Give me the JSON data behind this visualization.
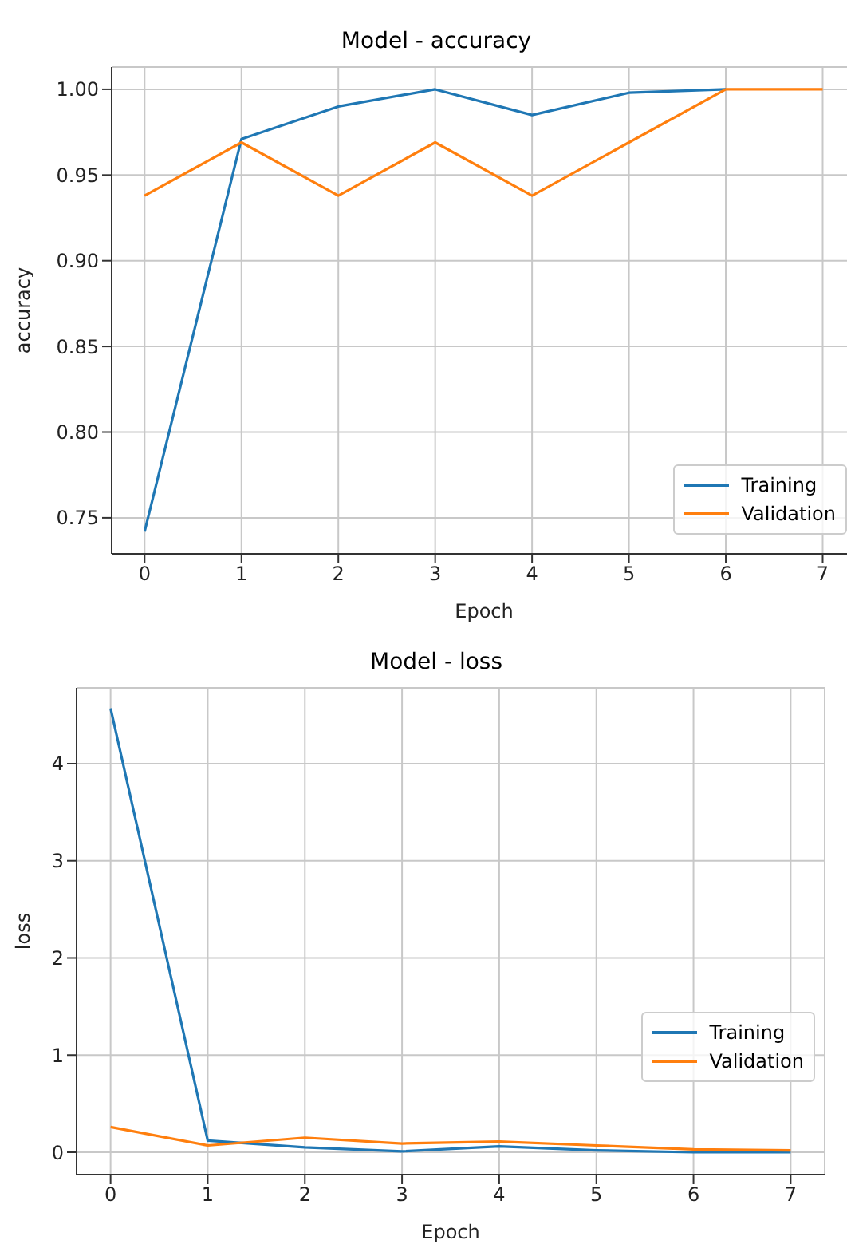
{
  "chart_data": [
    {
      "type": "line",
      "title": "Model - accuracy",
      "xlabel": "Epoch",
      "ylabel": "accuracy",
      "x": [
        0,
        1,
        2,
        3,
        4,
        5,
        6,
        7
      ],
      "xlim": [
        -0.34,
        7.35
      ],
      "xticks": [
        0,
        1,
        2,
        3,
        4,
        5,
        6,
        7
      ],
      "ylim": [
        0.729,
        1.013
      ],
      "yticks": [
        {
          "value": 0.75,
          "label": "0.75"
        },
        {
          "value": 0.8,
          "label": "0.80"
        },
        {
          "value": 0.85,
          "label": "0.85"
        },
        {
          "value": 0.9,
          "label": "0.90"
        },
        {
          "value": 0.95,
          "label": "0.95"
        },
        {
          "value": 1.0,
          "label": "1.00"
        }
      ],
      "grid": true,
      "legend": "bottom right",
      "marker": "none",
      "line_style": "solid",
      "series": [
        {
          "name": "Training",
          "color": "#1f77b4",
          "values": [
            0.742,
            0.971,
            0.99,
            1.0,
            0.985,
            0.998,
            1.0,
            null
          ]
        },
        {
          "name": "Validation",
          "color": "#ff7f0e",
          "values": [
            0.938,
            0.969,
            0.938,
            0.969,
            0.938,
            0.969,
            1.0,
            1.0
          ]
        }
      ]
    },
    {
      "type": "line",
      "title": "Model - loss",
      "xlabel": "Epoch",
      "ylabel": "loss",
      "x": [
        0,
        1,
        2,
        3,
        4,
        5,
        6,
        7
      ],
      "xlim": [
        -0.35,
        7.35
      ],
      "xticks": [
        0,
        1,
        2,
        3,
        4,
        5,
        6,
        7
      ],
      "ylim": [
        -0.23,
        4.78
      ],
      "yticks": [
        0,
        1,
        2,
        3,
        4
      ],
      "grid": true,
      "legend": "bottom right",
      "marker": "none",
      "line_style": "solid",
      "series": [
        {
          "name": "Training",
          "color": "#1f77b4",
          "values": [
            4.57,
            0.12,
            0.05,
            0.01,
            0.06,
            0.02,
            0.0,
            0.0
          ]
        },
        {
          "name": "Validation",
          "color": "#ff7f0e",
          "values": [
            0.26,
            0.07,
            0.15,
            0.09,
            0.11,
            0.07,
            0.03,
            0.02
          ]
        }
      ]
    }
  ]
}
